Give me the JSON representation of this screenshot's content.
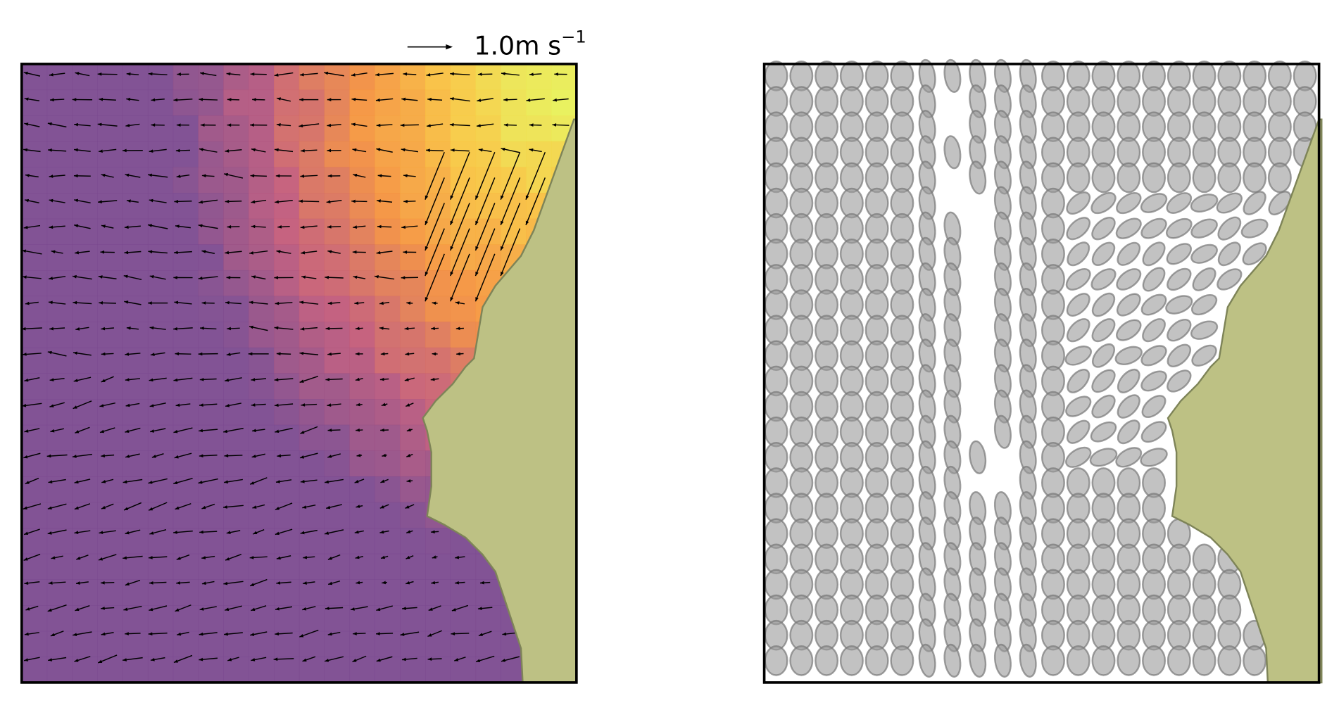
{
  "quiver_key": {
    "label": "1.0m s",
    "superscript": "−1"
  }
}
